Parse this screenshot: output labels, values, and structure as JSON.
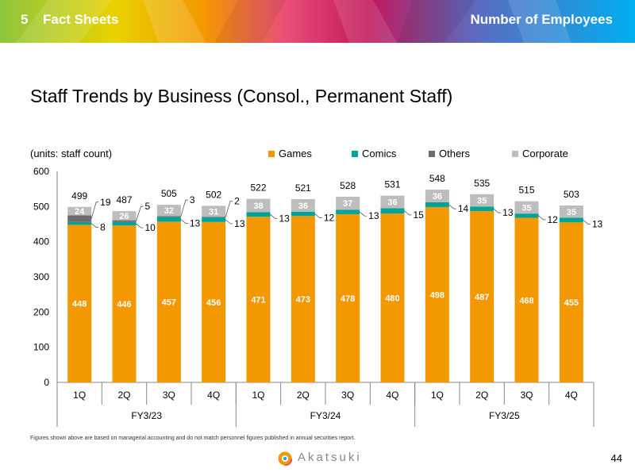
{
  "header": {
    "section_number": "5",
    "section_title": "Fact Sheets",
    "topic": "Number of Employees"
  },
  "title": "Staff Trends by Business (Consol., Permanent Staff)",
  "footnote": "Figures shown above are based on managerial accounting and do not match personnel figures published in annual securities report.",
  "brand": "Akatsuki",
  "page_number": "44",
  "colors": {
    "games": "#F39800",
    "comics": "#00A497",
    "others": "#6D6D6D",
    "corporate": "#BDBDBD"
  },
  "chart_data": {
    "type": "bar",
    "stacked": true,
    "units_label": "(units: staff count)",
    "ylim": [
      0,
      600
    ],
    "yticks": [
      "0",
      "100",
      "200",
      "300",
      "400",
      "500",
      "600"
    ],
    "categories": [
      "1Q",
      "2Q",
      "3Q",
      "4Q",
      "1Q",
      "2Q",
      "3Q",
      "4Q",
      "1Q",
      "2Q",
      "3Q",
      "4Q"
    ],
    "groups": [
      {
        "label": "FY3/23",
        "start": 0,
        "end": 3
      },
      {
        "label": "FY3/24",
        "start": 4,
        "end": 7
      },
      {
        "label": "FY3/25",
        "start": 8,
        "end": 11
      }
    ],
    "legend_position": "top",
    "series": [
      {
        "name": "Games",
        "color": "#F39800",
        "values": [
          448,
          446,
          457,
          456,
          471,
          473,
          478,
          480,
          498,
          487,
          468,
          455
        ]
      },
      {
        "name": "Comics",
        "color": "#00A497",
        "values": [
          8,
          10,
          13,
          13,
          13,
          12,
          13,
          15,
          14,
          13,
          12,
          13
        ]
      },
      {
        "name": "Others",
        "color": "#6D6D6D",
        "values": [
          19,
          5,
          3,
          2,
          0,
          0,
          0,
          0,
          0,
          0,
          0,
          0
        ]
      },
      {
        "name": "Corporate",
        "color": "#BDBDBD",
        "values": [
          24,
          26,
          32,
          31,
          38,
          36,
          37,
          36,
          36,
          35,
          35,
          35
        ]
      }
    ],
    "totals": [
      499,
      487,
      505,
      502,
      522,
      521,
      528,
      531,
      548,
      535,
      515,
      503
    ]
  }
}
